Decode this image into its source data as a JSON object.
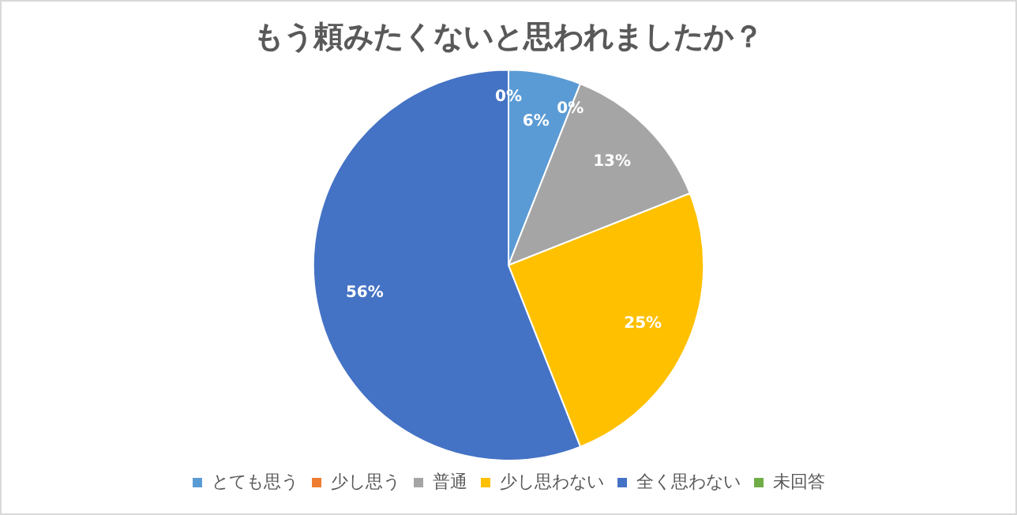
{
  "chart_data": {
    "type": "pie",
    "title": "もう頼みたくないと思われましたか？",
    "categories": [
      "とても思う",
      "少し思う",
      "普通",
      "少し思わない",
      "全く思わない",
      "未回答"
    ],
    "values": [
      6,
      0,
      13,
      25,
      56,
      0
    ],
    "colors": [
      "#5b9bd5",
      "#ed7d31",
      "#a5a5a5",
      "#ffc000",
      "#4472c4",
      "#70ad47"
    ],
    "value_labels": [
      "6%",
      "0%",
      "13%",
      "25%",
      "56%",
      "0%"
    ],
    "legend": "bottom"
  }
}
